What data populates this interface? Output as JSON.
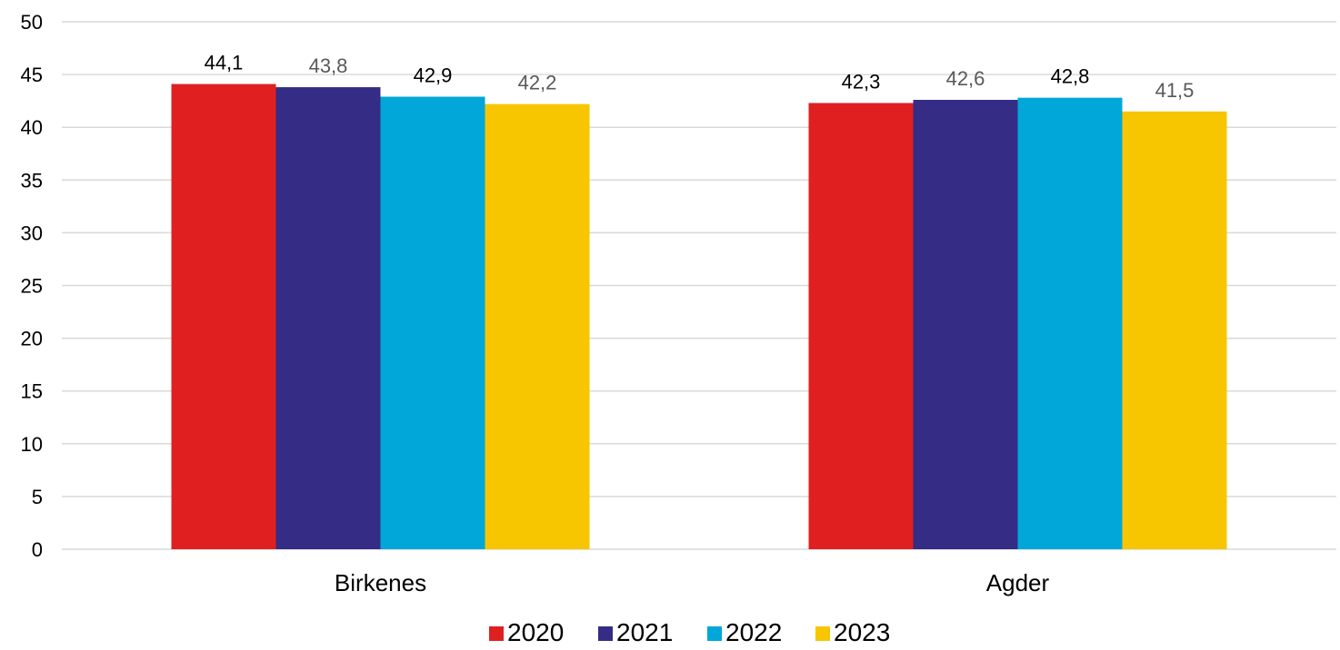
{
  "chart_data": {
    "type": "bar",
    "categories": [
      "Birkenes",
      "Agder"
    ],
    "series": [
      {
        "name": "2020",
        "values": [
          44.1,
          42.3
        ],
        "labels": [
          "44,1",
          "42,3"
        ],
        "color": "#e02020",
        "label_color": "#000000"
      },
      {
        "name": "2021",
        "values": [
          43.8,
          42.6
        ],
        "labels": [
          "43,8",
          "42,6"
        ],
        "color": "#352c85",
        "label_color": "#595959"
      },
      {
        "name": "2022",
        "values": [
          42.9,
          42.8
        ],
        "labels": [
          "42,9",
          "42,8"
        ],
        "color": "#00a7d8",
        "label_color": "#000000"
      },
      {
        "name": "2023",
        "values": [
          42.2,
          41.5
        ],
        "labels": [
          "42,2",
          "41,5"
        ],
        "color": "#f7c600",
        "label_color": "#595959"
      }
    ],
    "ylim": [
      0,
      50
    ],
    "yticks": [
      "0",
      "5",
      "10",
      "15",
      "20",
      "25",
      "30",
      "35",
      "40",
      "45",
      "50"
    ],
    "title": "",
    "xlabel": "",
    "ylabel": "",
    "grid": true,
    "legend_position": "bottom"
  }
}
